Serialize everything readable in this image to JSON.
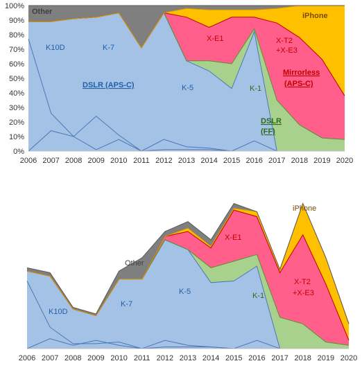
{
  "chart_data": [
    {
      "type": "area",
      "stacked": true,
      "normalized": true,
      "x": [
        2006,
        2007,
        2008,
        2009,
        2010,
        2011,
        2012,
        2013,
        2014,
        2015,
        2016,
        2017,
        2018,
        2019,
        2020
      ],
      "ylim": [
        0,
        1
      ],
      "yticks": [
        "0%",
        "10%",
        "20%",
        "30%",
        "40%",
        "50%",
        "60%",
        "70%",
        "80%",
        "90%",
        "100%"
      ],
      "cumulative": [
        {
          "name": "DSLR (APS-C)",
          "values": [
            0.89,
            0.89,
            0.91,
            0.92,
            0.95,
            0.71,
            0.95,
            0.62,
            0.55,
            0.43,
            0.82,
            0.0,
            0.0,
            0.0,
            0.0
          ]
        },
        {
          "name": "DSLR (FF)",
          "values": [
            0.89,
            0.89,
            0.91,
            0.92,
            0.95,
            0.71,
            0.95,
            0.62,
            0.62,
            0.6,
            0.84,
            0.35,
            0.18,
            0.09,
            0.08
          ]
        },
        {
          "name": "Mirrorless (APS-C)",
          "values": [
            0.89,
            0.89,
            0.91,
            0.92,
            0.95,
            0.71,
            0.95,
            0.92,
            0.85,
            0.92,
            0.92,
            0.88,
            0.78,
            0.63,
            0.38
          ]
        },
        {
          "name": "iPhone",
          "values": [
            0.89,
            0.89,
            0.91,
            0.92,
            0.95,
            0.71,
            0.95,
            0.98,
            0.97,
            0.97,
            0.97,
            0.98,
            1.0,
            1.0,
            1.0
          ]
        },
        {
          "name": "Other",
          "values": [
            1.0,
            1.0,
            1.0,
            1.0,
            1.0,
            1.0,
            1.0,
            1.0,
            1.0,
            1.0,
            1.0,
            1.0,
            1.0,
            1.0,
            1.0
          ]
        }
      ],
      "model_lines": [
        {
          "name": "K10D",
          "values": [
            0.77,
            0.26,
            0.1,
            0.01,
            0.08,
            0.0,
            0.0,
            0.0,
            0.0,
            0.0,
            0.0,
            0.0,
            0.0,
            0.0,
            0.0
          ]
        },
        {
          "name": "K-7",
          "values": [
            0.0,
            0.14,
            0.1,
            0.24,
            0.11,
            0.0,
            0.08,
            0.03,
            0.02,
            0.0,
            0.0,
            0.0,
            0.0,
            0.0,
            0.0
          ]
        },
        {
          "name": "K-5",
          "values": [
            0.0,
            0.0,
            0.0,
            0.0,
            0.0,
            0.0,
            0.01,
            0.01,
            0.01,
            0.0,
            0.0,
            0.0,
            0.0,
            0.0,
            0.0
          ]
        },
        {
          "name": "K-1",
          "values": [
            0.0,
            0.0,
            0.0,
            0.0,
            0.0,
            0.0,
            0.0,
            0.0,
            0.0,
            0.0,
            0.07,
            0.0,
            0.0,
            0.0,
            0.0
          ]
        }
      ],
      "labels": {
        "other": "Other",
        "iphone": "iPhone",
        "k10d": "K10D",
        "k7": "K-7",
        "dslr_apsc": "DSLR (APS-C)",
        "k5": "K-5",
        "xe1": "X-E1",
        "k1": "K-1",
        "xt2_1": "X-T2",
        "xt2_2": "+X-E3",
        "mirrorless_1": "Mirrorless",
        "mirrorless_2": "(APS-C)",
        "dslr_ff_1": "DSLR",
        "dslr_ff_2": "(FF)"
      }
    },
    {
      "type": "area",
      "stacked": true,
      "normalized": false,
      "x": [
        2006,
        2007,
        2008,
        2009,
        2010,
        2011,
        2012,
        2013,
        2014,
        2015,
        2016,
        2017,
        2018,
        2019,
        2020
      ],
      "ylim": [
        0,
        100
      ],
      "cumulative": [
        {
          "name": "DSLR (APS-C)",
          "values": [
            47,
            44,
            24,
            20,
            42,
            42,
            66,
            60,
            40,
            41,
            50,
            0,
            0,
            0,
            0
          ]
        },
        {
          "name": "DSLR (FF)",
          "values": [
            47,
            44,
            24,
            20,
            42,
            42,
            66,
            60,
            49,
            53,
            57,
            19,
            15,
            4,
            2
          ]
        },
        {
          "name": "Mirrorless (APS-C)",
          "values": [
            47,
            44,
            24,
            20,
            42,
            42,
            68,
            71,
            61,
            84,
            80,
            46,
            69,
            39,
            5
          ]
        },
        {
          "name": "iPhone",
          "values": [
            47,
            44,
            24,
            20,
            42,
            42,
            68,
            73,
            62,
            85,
            83,
            48,
            88,
            55,
            15
          ]
        },
        {
          "name": "Other",
          "values": [
            49,
            46,
            25,
            21,
            47,
            55,
            71,
            77,
            66,
            88,
            83,
            48,
            88,
            55,
            15
          ]
        }
      ],
      "model_lines": [
        {
          "name": "K10D",
          "values": [
            41,
            13,
            3,
            3,
            4,
            0,
            0,
            0,
            0,
            0,
            0,
            0,
            0,
            0,
            0
          ]
        },
        {
          "name": "K-7",
          "values": [
            0,
            6,
            2,
            5,
            2,
            0,
            5,
            2,
            1,
            0,
            0,
            0,
            0,
            0,
            0
          ]
        },
        {
          "name": "K-5",
          "values": [
            0,
            0,
            0,
            0,
            0,
            0,
            1,
            1,
            1,
            0,
            0,
            0,
            0,
            0,
            0
          ]
        },
        {
          "name": "K-1",
          "values": [
            0,
            0,
            0,
            0,
            0,
            0,
            0,
            0,
            0,
            0,
            5,
            0,
            0,
            0,
            0
          ]
        }
      ],
      "labels": {
        "other": "Other",
        "iphone": "iPhone",
        "k10d": "K10D",
        "k7": "K-7",
        "k5": "K-5",
        "xe1": "X-E1",
        "k1": "K-1",
        "xt2_1": "X-T2",
        "xt2_2": "+X-E3"
      }
    }
  ],
  "colors": {
    "dslr_apsc": "#a4c2e6",
    "dslr_ff": "#a9d18e",
    "mirrorless_apsc": "#ff5f8a",
    "iphone": "#ffc000",
    "other": "#7f7f7f",
    "apsc_line": "#4a78b5",
    "ff_line": "#5a8f33",
    "mirrorless_line": "#c00000",
    "iphone_line": "#d99a00",
    "other_line": "#595959"
  }
}
